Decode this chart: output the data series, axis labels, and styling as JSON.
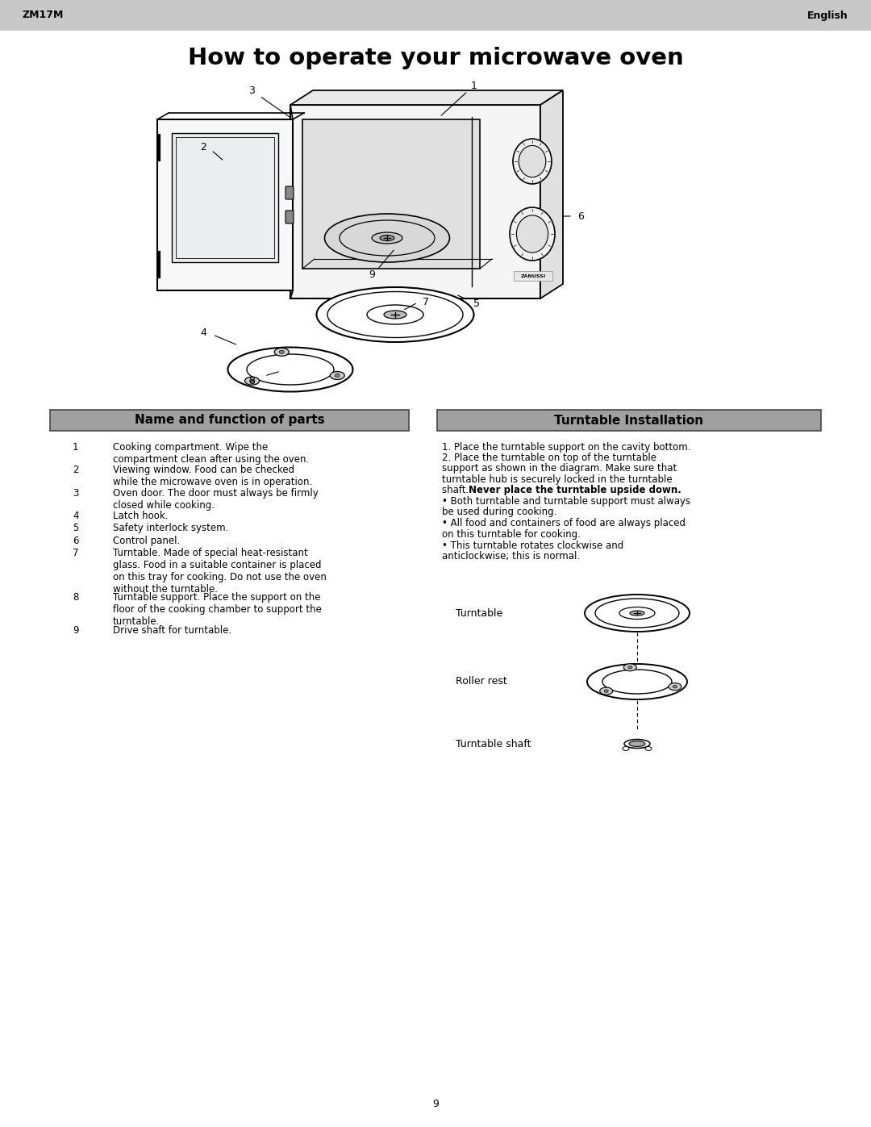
{
  "page_title": "How to operate your microwave oven",
  "header_left": "ZM17M",
  "header_right": "English",
  "header_bg": "#c8c8c8",
  "bg_color": "#ffffff",
  "page_number": "9",
  "left_box_title": "Name and function of parts",
  "right_box_title": "Turntable Installation",
  "box_bg": "#a0a0a0",
  "parts_list": [
    [
      "1",
      "Cooking compartment. Wipe the\ncompartment clean after using the oven."
    ],
    [
      "2",
      "Viewing window. Food can be checked\nwhile the microwave oven is in operation."
    ],
    [
      "3",
      "Oven door. The door must always be firmly\nclosed while cooking."
    ],
    [
      "4",
      "Latch hook."
    ],
    [
      "5",
      "Safety interlock system."
    ],
    [
      "6",
      "Control panel."
    ],
    [
      "7",
      "Turntable. Made of special heat-resistant\nglass. Food in a suitable container is placed\non this tray for cooking. Do not use the oven\nwithout the turntable."
    ],
    [
      "8",
      "Turntable support. Place the support on the\nfloor of the cooking chamber to support the\nturntable."
    ],
    [
      "9",
      "Drive shaft for turntable."
    ]
  ],
  "turntable_line1": "1. Place the turntable support on the cavity bottom.",
  "turntable_line2": "2. Place the turntable on top of the turntable",
  "turntable_line3": "support as shown in the diagram. Make sure that",
  "turntable_line4": "turntable hub is securely locked in the turntable",
  "turntable_line5_pre": "shaft. ",
  "turntable_line5_bold": "Never place the turntable upside down.",
  "turntable_bullet1a": "• Both turntable and turntable support must always",
  "turntable_bullet1b": "be used during cooking.",
  "turntable_bullet2a": "• All food and containers of food are always placed",
  "turntable_bullet2b": "on this turntable for cooking.",
  "turntable_bullet3a": "• This turntable rotates clockwise and",
  "turntable_bullet3b": "anticlockwise; this is normal.",
  "turntable_label1": "Turntable",
  "turntable_label2": "Roller rest",
  "turntable_label3": "Turntable shaft",
  "diagram_scale": 1.0
}
